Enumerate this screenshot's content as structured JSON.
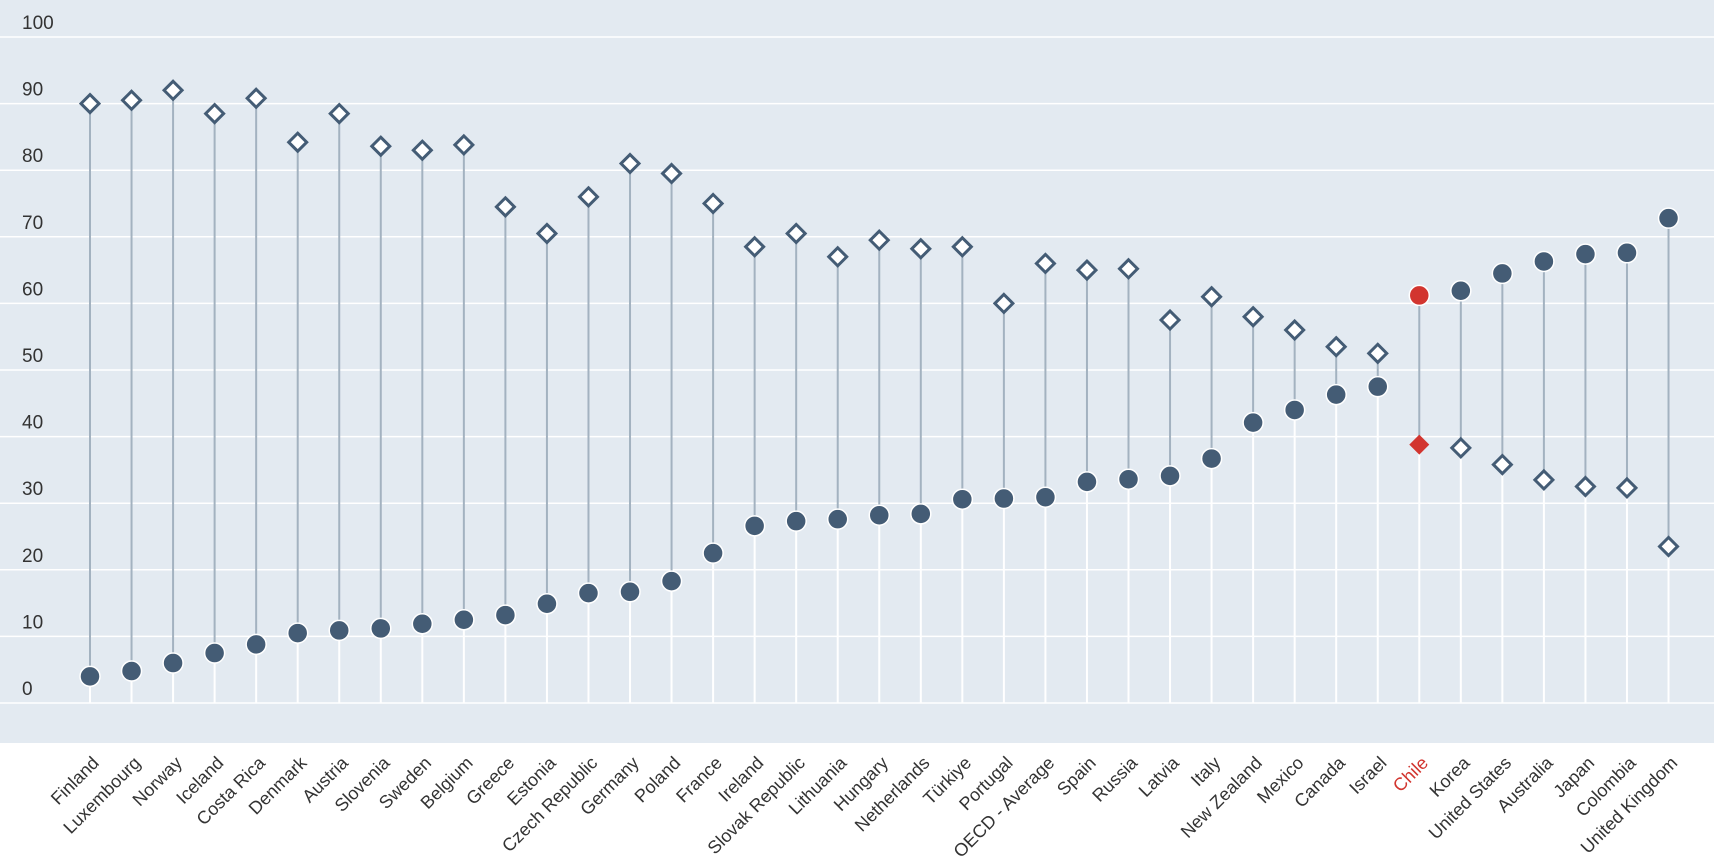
{
  "chart_data": {
    "type": "dot-range",
    "ylim": [
      -6,
      100
    ],
    "yticks": [
      0,
      10,
      20,
      30,
      40,
      50,
      60,
      70,
      80,
      90,
      100
    ],
    "highlight_category": "Chile",
    "colors": {
      "background": "#e3eaf1",
      "gridline": "#ffffff",
      "connector": "#a3b2c0",
      "marker": "#445c75",
      "highlight": "#d2352f"
    },
    "categories": [
      "Finland",
      "Luxembourg",
      "Norway",
      "Iceland",
      "Costa Rica",
      "Denmark",
      "Austria",
      "Slovenia",
      "Sweden",
      "Belgium",
      "Greece",
      "Estonia",
      "Czech Republic",
      "Germany",
      "Poland",
      "France",
      "Ireland",
      "Slovak Republic",
      "Lithuania",
      "Hungary",
      "Netherlands",
      "Türkiye",
      "Portugal",
      "OECD - Average",
      "Spain",
      "Russia",
      "Latvia",
      "Italy",
      "New Zealand",
      "Mexico",
      "Canada",
      "Israel",
      "Chile",
      "Korea",
      "United States",
      "Australia",
      "Japan",
      "Colombia",
      "United Kingdom"
    ],
    "series": [
      {
        "marker": "circle",
        "values": [
          4.0,
          4.8,
          6.0,
          7.5,
          8.8,
          10.5,
          10.9,
          11.2,
          11.9,
          12.5,
          13.2,
          14.9,
          16.5,
          16.7,
          18.3,
          22.5,
          26.6,
          27.3,
          27.6,
          28.2,
          28.4,
          30.6,
          30.7,
          30.9,
          33.2,
          33.6,
          34.1,
          36.7,
          42.1,
          44.0,
          46.3,
          47.5,
          61.2,
          61.9,
          64.5,
          66.3,
          67.4,
          67.6,
          72.8
        ]
      },
      {
        "marker": "diamond",
        "values": [
          90.0,
          90.5,
          92.0,
          88.5,
          90.8,
          84.2,
          88.5,
          83.6,
          83.0,
          83.8,
          74.5,
          70.5,
          76.0,
          81.0,
          79.5,
          75.0,
          68.5,
          70.5,
          67.0,
          69.5,
          68.2,
          68.5,
          60.0,
          66.0,
          65.0,
          65.2,
          57.5,
          61.0,
          58.0,
          56.0,
          53.5,
          52.5,
          38.8,
          38.3,
          35.8,
          33.5,
          32.5,
          32.3,
          23.5
        ]
      }
    ]
  }
}
